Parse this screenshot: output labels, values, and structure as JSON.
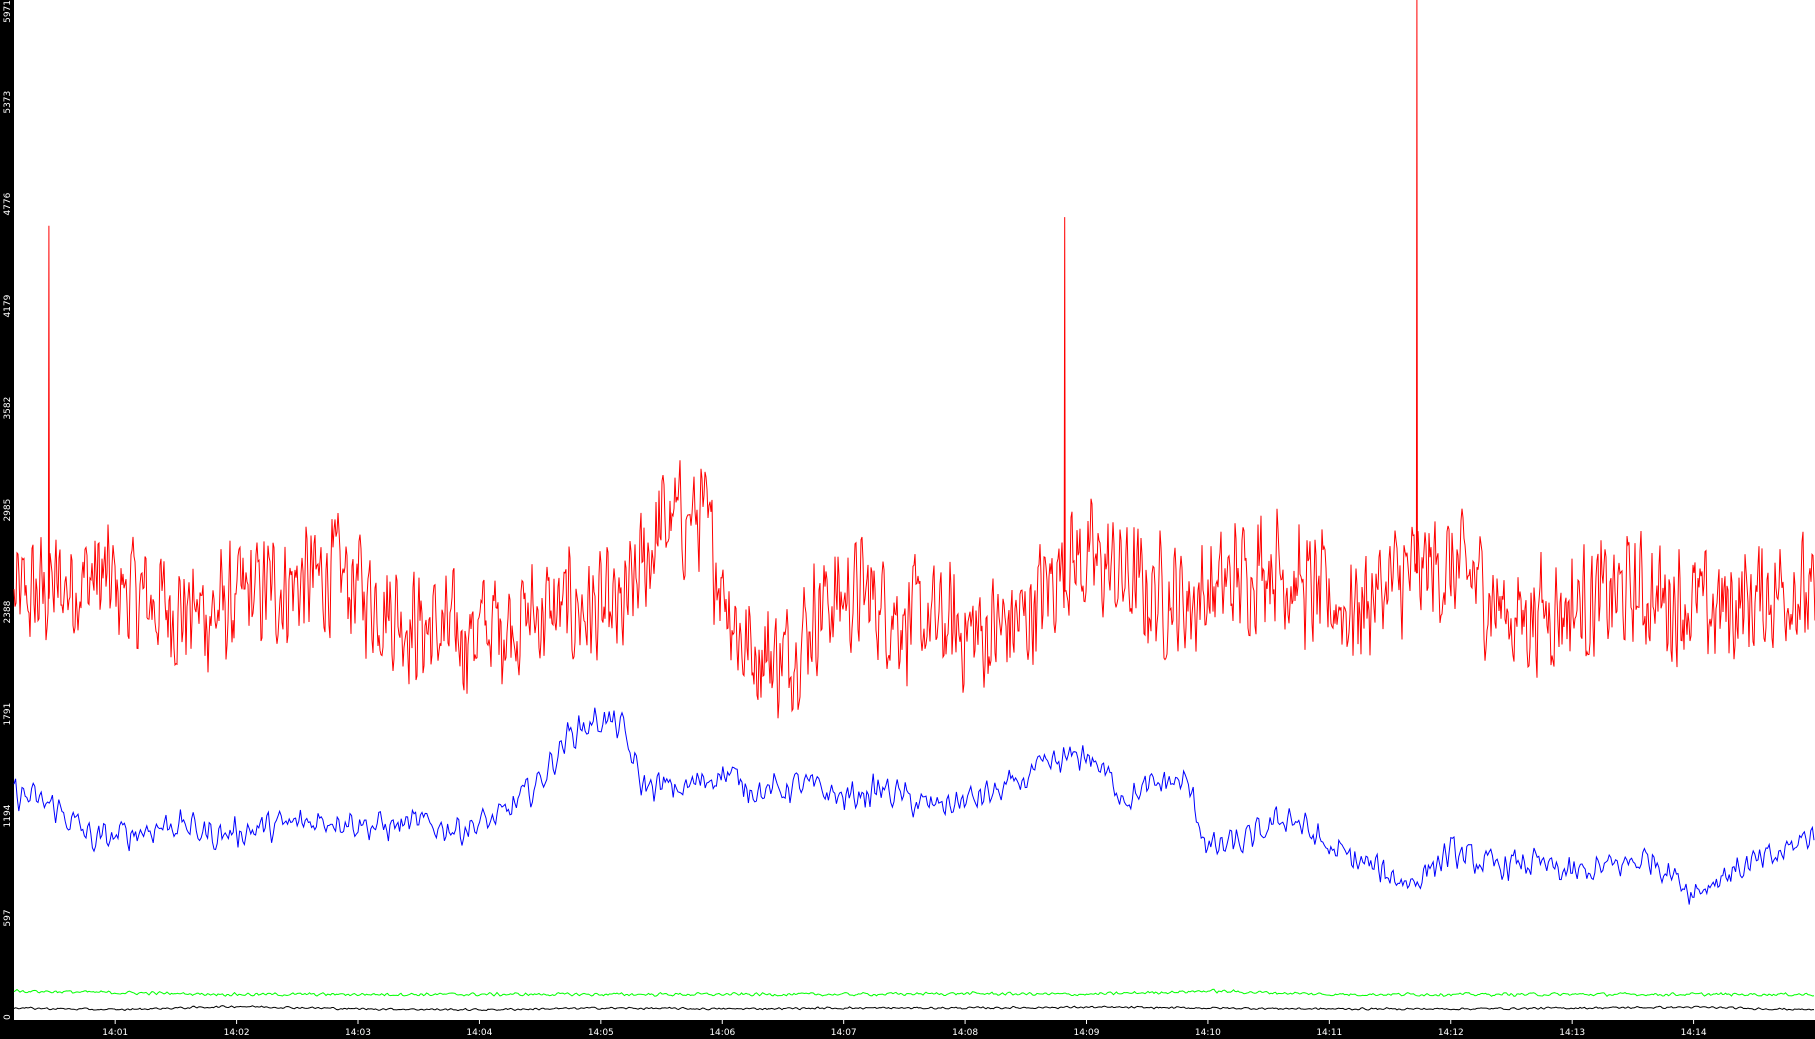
{
  "chart_data": {
    "type": "line",
    "title": "",
    "xlabel": "",
    "ylabel": "",
    "ylim": [
      0,
      5971
    ],
    "xlim": [
      "14:00:10",
      "14:15:00"
    ],
    "grid": false,
    "legend": "none",
    "background": "#ffffff",
    "axis_background": "#000000",
    "y_tick_labels": [
      "0",
      "597",
      "1194",
      "1791",
      "2388",
      "2985",
      "3582",
      "4179",
      "4776",
      "5373",
      "5971"
    ],
    "x_tick_labels": [
      "14:01",
      "14:02",
      "14:03",
      "14:04",
      "14:05",
      "14:06",
      "14:07",
      "14:08",
      "14:09",
      "14:10",
      "14:11",
      "14:12",
      "14:13",
      "14:14"
    ],
    "x_ticks": [
      "14:01:00",
      "14:02:00",
      "14:03:00",
      "14:04:00",
      "14:05:00",
      "14:06:00",
      "14:07:00",
      "14:08:00",
      "14:09:00",
      "14:10:00",
      "14:11:00",
      "14:12:00",
      "14:13:00",
      "14:14:00"
    ],
    "series": [
      {
        "color": "#ff0000",
        "x": [
          "14:00:10",
          "14:00:30",
          "14:00:50",
          "14:01:10",
          "14:01:30",
          "14:01:50",
          "14:02:10",
          "14:02:30",
          "14:02:50",
          "14:03:10",
          "14:03:30",
          "14:03:50",
          "14:04:10",
          "14:04:30",
          "14:04:50",
          "14:05:10",
          "14:05:30",
          "14:05:50",
          "14:06:10",
          "14:06:30",
          "14:06:50",
          "14:07:10",
          "14:07:30",
          "14:07:50",
          "14:08:10",
          "14:08:30",
          "14:08:50",
          "14:09:10",
          "14:09:30",
          "14:09:50",
          "14:10:10",
          "14:10:30",
          "14:10:50",
          "14:11:10",
          "14:11:30",
          "14:11:50",
          "14:12:10",
          "14:12:30",
          "14:12:50",
          "14:13:10",
          "14:13:30",
          "14:13:50",
          "14:14:10",
          "14:14:30",
          "14:14:50",
          "14:15:00"
        ],
        "values": [
          2450,
          2520,
          2600,
          2480,
          2400,
          2380,
          2500,
          2550,
          2620,
          2450,
          2300,
          2250,
          2320,
          2380,
          2400,
          2350,
          2900,
          2950,
          2200,
          2100,
          2450,
          2500,
          2350,
          2300,
          2250,
          2350,
          2700,
          2650,
          2500,
          2450,
          2550,
          2700,
          2500,
          2400,
          2550,
          2650,
          2600,
          2350,
          2400,
          2450,
          2500,
          2450,
          2400,
          2450,
          2550,
          2400
        ],
        "spikes": [
          {
            "x": "14:00:27",
            "y": 4650
          },
          {
            "x": "14:08:49",
            "y": 4700
          },
          {
            "x": "14:11:43",
            "y": 5971
          }
        ]
      },
      {
        "color": "#0000ff",
        "x": [
          "14:00:10",
          "14:00:30",
          "14:00:50",
          "14:01:10",
          "14:01:30",
          "14:01:50",
          "14:02:10",
          "14:02:30",
          "14:02:50",
          "14:03:10",
          "14:03:30",
          "14:03:50",
          "14:04:10",
          "14:04:30",
          "14:04:45",
          "14:05:00",
          "14:05:10",
          "14:05:20",
          "14:05:40",
          "14:06:00",
          "14:06:20",
          "14:06:40",
          "14:07:00",
          "14:07:20",
          "14:07:40",
          "14:08:00",
          "14:08:20",
          "14:08:40",
          "14:09:00",
          "14:09:20",
          "14:09:40",
          "14:09:50",
          "14:10:00",
          "14:10:20",
          "14:10:40",
          "14:11:00",
          "14:11:20",
          "14:11:40",
          "14:12:00",
          "14:12:20",
          "14:12:40",
          "14:13:00",
          "14:13:20",
          "14:13:40",
          "14:14:00",
          "14:14:20",
          "14:14:40",
          "14:15:00"
        ],
        "values": [
          1330,
          1250,
          1050,
          1100,
          1150,
          1080,
          1120,
          1150,
          1180,
          1130,
          1150,
          1120,
          1180,
          1400,
          1680,
          1760,
          1720,
          1380,
          1350,
          1450,
          1330,
          1380,
          1300,
          1350,
          1250,
          1280,
          1350,
          1480,
          1560,
          1300,
          1400,
          1380,
          1000,
          1050,
          1200,
          1000,
          900,
          800,
          980,
          900,
          920,
          850,
          900,
          950,
          750,
          880,
          950,
          1100
        ]
      },
      {
        "color": "#00ff00",
        "x": [
          "14:00:10",
          "14:01:00",
          "14:02:00",
          "14:03:00",
          "14:04:00",
          "14:05:00",
          "14:06:00",
          "14:07:00",
          "14:08:00",
          "14:09:00",
          "14:10:00",
          "14:11:00",
          "14:12:00",
          "14:13:00",
          "14:14:00",
          "14:15:00"
        ],
        "values": [
          170,
          160,
          150,
          150,
          150,
          150,
          150,
          150,
          155,
          150,
          170,
          150,
          150,
          150,
          150,
          150
        ]
      },
      {
        "color": "#000000",
        "x": [
          "14:00:10",
          "14:01:00",
          "14:02:00",
          "14:03:00",
          "14:04:00",
          "14:05:00",
          "14:06:00",
          "14:07:00",
          "14:08:00",
          "14:09:00",
          "14:10:00",
          "14:11:00",
          "14:12:00",
          "14:13:00",
          "14:14:00",
          "14:15:00"
        ],
        "values": [
          70,
          60,
          80,
          65,
          60,
          70,
          65,
          70,
          70,
          75,
          70,
          65,
          65,
          70,
          75,
          60
        ]
      }
    ]
  }
}
